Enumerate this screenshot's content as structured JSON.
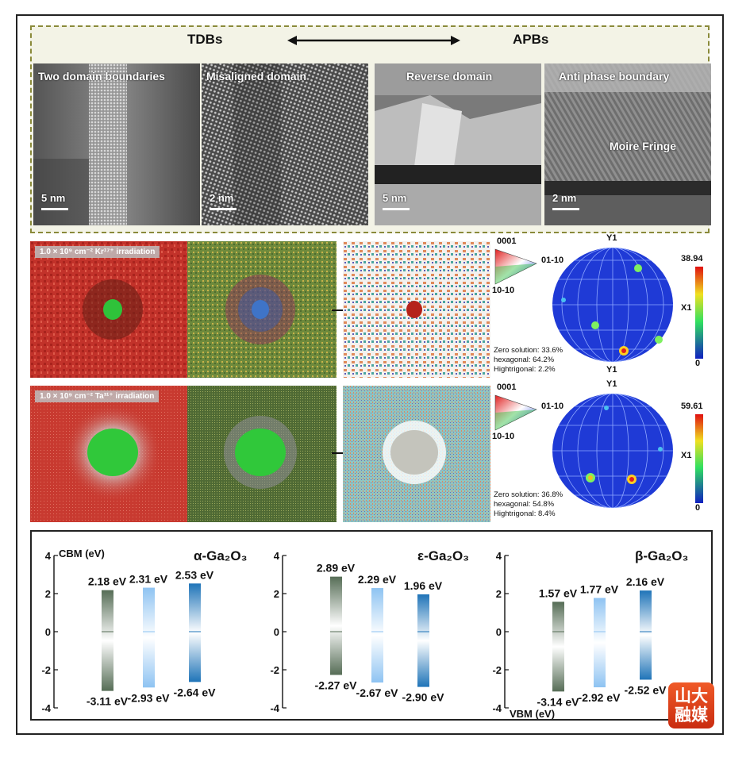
{
  "panel_a": {
    "left_header": "TDBs",
    "right_header": "APBs",
    "images": [
      {
        "label": "Two domain boundaries",
        "scale_bar": "5 nm"
      },
      {
        "label": "Misaligned domain",
        "scale_bar": "2 nm"
      },
      {
        "label": "Reverse domain",
        "scale_bar": "5 nm"
      },
      {
        "label": "Anti phase boundary",
        "scale_bar": "2 nm",
        "extra_label": "Moire Fringe"
      }
    ]
  },
  "panel_b": {
    "rows": [
      {
        "irradiation_label": "1.0 × 10⁹ cm⁻² Kr¹⁷⁺ irradiation",
        "legend": {
          "top": "0001",
          "right": "01-10",
          "bottom": "10-10"
        },
        "pole_axis_top": "Y1",
        "pole_axis_side": "X1",
        "colorbar_max": "38.94",
        "colorbar_min": "0",
        "stats": [
          "Zero solution: 33.6%",
          "hexagonal: 64.2%",
          "Hightrigonal: 2.2%"
        ]
      },
      {
        "irradiation_label": "1.0 × 10⁹ cm⁻² Ta³¹⁺ irradiation",
        "legend": {
          "top": "0001",
          "right": "01-10",
          "bottom": "10-10"
        },
        "pole_axis_top": "Y1",
        "pole_axis_side": "X1",
        "colorbar_max": "59.61",
        "colorbar_min": "0",
        "stats": [
          "Zero solution: 36.8%",
          "hexagonal: 54.8%",
          "Hightrigonal: 8.4%"
        ]
      }
    ]
  },
  "chart_data": [
    {
      "type": "bar",
      "title": "α-Ga2O3",
      "ylabel": "CBM (eV)",
      "ylim": [
        -4,
        4
      ],
      "yticks": [
        "4",
        "2",
        "0",
        "-2",
        "-4"
      ],
      "bars": [
        {
          "top": 2.18,
          "bottom": -3.11,
          "top_label": "2.18 eV",
          "bottom_label": "-3.11 eV",
          "color": "#566d56"
        },
        {
          "top": 2.31,
          "bottom": -2.93,
          "top_label": "2.31 eV",
          "bottom_label": "-2.93 eV",
          "color": "#8ec3f2"
        },
        {
          "top": 2.53,
          "bottom": -2.64,
          "top_label": "2.53 eV",
          "bottom_label": "-2.64 eV",
          "color": "#1f74b8"
        }
      ]
    },
    {
      "type": "bar",
      "title": "ε-Ga2O3",
      "ylabel": "",
      "ylim": [
        -4,
        4
      ],
      "yticks": [
        "4",
        "2",
        "0",
        "-2",
        "-4"
      ],
      "bars": [
        {
          "top": 2.89,
          "bottom": -2.27,
          "top_label": "2.89 eV",
          "bottom_label": "-2.27 eV",
          "color": "#566d56"
        },
        {
          "top": 2.29,
          "bottom": -2.67,
          "top_label": "2.29 eV",
          "bottom_label": "-2.67 eV",
          "color": "#8ec3f2"
        },
        {
          "top": 1.96,
          "bottom": -2.9,
          "top_label": "1.96 eV",
          "bottom_label": "-2.90 eV",
          "color": "#1f74b8"
        }
      ]
    },
    {
      "type": "bar",
      "title": "β-Ga2O3",
      "ylabel": "VBM (eV)",
      "ylim": [
        -4,
        4
      ],
      "yticks": [
        "4",
        "2",
        "0",
        "-2",
        "-4"
      ],
      "bars": [
        {
          "top": 1.57,
          "bottom": -3.14,
          "top_label": "1.57 eV",
          "bottom_label": "-3.14 eV",
          "color": "#566d56"
        },
        {
          "top": 1.77,
          "bottom": -2.92,
          "top_label": "1.77 eV",
          "bottom_label": "-2.92 eV",
          "color": "#8ec3f2"
        },
        {
          "top": 2.16,
          "bottom": -2.52,
          "top_label": "2.16 eV",
          "bottom_label": "-2.52 eV",
          "color": "#1f74b8"
        }
      ]
    }
  ],
  "logo": {
    "line1": "山大",
    "line2": "融媒"
  }
}
